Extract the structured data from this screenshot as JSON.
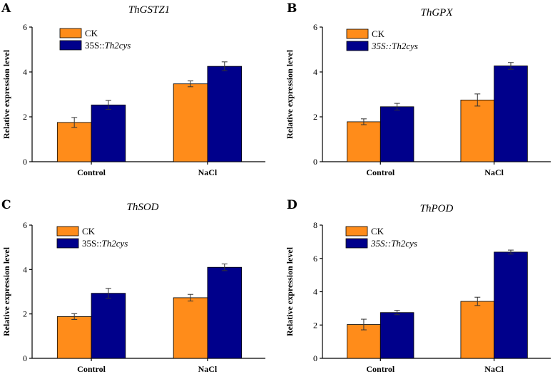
{
  "colors": {
    "ck": "#FF8C1A",
    "transgenic": "#00008B"
  },
  "chart_data": [
    {
      "panel": "A",
      "type": "bar",
      "title": "ThGSTZ1",
      "ylabel": "Relative expression level",
      "xlabel": "",
      "categories": [
        "Control",
        "NaCl"
      ],
      "ylim": [
        0,
        6
      ],
      "yticks": [
        0,
        2,
        4,
        6
      ],
      "legend_position": "top-left",
      "series": [
        {
          "name": "CK",
          "name_prefix": "CK",
          "name_italic": "",
          "color": "#FF8C1A",
          "values": [
            1.75,
            3.47
          ],
          "errors": [
            0.22,
            0.13
          ]
        },
        {
          "name": "35S::Th2cys",
          "name_prefix": "35S::",
          "name_italic": "Th2cys",
          "color": "#00008B",
          "values": [
            2.53,
            4.25
          ],
          "errors": [
            0.2,
            0.2
          ]
        }
      ]
    },
    {
      "panel": "B",
      "type": "bar",
      "title": "ThGPX",
      "ylabel": "Relative expression level",
      "xlabel": "",
      "categories": [
        "Control",
        "NaCl"
      ],
      "ylim": [
        0,
        6
      ],
      "yticks": [
        0,
        2,
        4,
        6
      ],
      "legend_position": "top-left",
      "series": [
        {
          "name": "CK",
          "name_prefix": "CK",
          "name_italic": "",
          "color": "#FF8C1A",
          "values": [
            1.78,
            2.75
          ],
          "errors": [
            0.13,
            0.27
          ]
        },
        {
          "name": "35S::Th2cys",
          "name_prefix": "",
          "name_italic": "35S::Th2cys",
          "color": "#00008B",
          "values": [
            2.45,
            4.27
          ],
          "errors": [
            0.15,
            0.15
          ]
        }
      ]
    },
    {
      "panel": "C",
      "type": "bar",
      "title": "ThSOD",
      "ylabel": "Relative expression level",
      "xlabel": "",
      "categories": [
        "Control",
        "NaCl"
      ],
      "ylim": [
        0,
        6
      ],
      "yticks": [
        0,
        2,
        4,
        6
      ],
      "legend_position": "top-left",
      "series": [
        {
          "name": "CK",
          "name_prefix": "CK",
          "name_italic": "",
          "color": "#FF8C1A",
          "values": [
            1.88,
            2.73
          ],
          "errors": [
            0.13,
            0.15
          ]
        },
        {
          "name": "35S::Th2cys",
          "name_prefix": "35S::",
          "name_italic": "Th2cys",
          "color": "#00008B",
          "values": [
            2.93,
            4.1
          ],
          "errors": [
            0.22,
            0.15
          ]
        }
      ]
    },
    {
      "panel": "D",
      "type": "bar",
      "title": "ThPOD",
      "ylabel": "Relative expression level",
      "xlabel": "",
      "categories": [
        "Control",
        "NaCl"
      ],
      "ylim": [
        0,
        8
      ],
      "yticks": [
        0,
        2,
        4,
        6,
        8
      ],
      "legend_position": "top-left",
      "series": [
        {
          "name": "CK",
          "name_prefix": "CK",
          "name_italic": "",
          "color": "#FF8C1A",
          "values": [
            2.03,
            3.42
          ],
          "errors": [
            0.32,
            0.25
          ]
        },
        {
          "name": "35S::Th2cys",
          "name_prefix": "",
          "name_italic": "35S::Th2cys",
          "color": "#00008B",
          "values": [
            2.75,
            6.38
          ],
          "errors": [
            0.13,
            0.12
          ]
        }
      ]
    }
  ]
}
